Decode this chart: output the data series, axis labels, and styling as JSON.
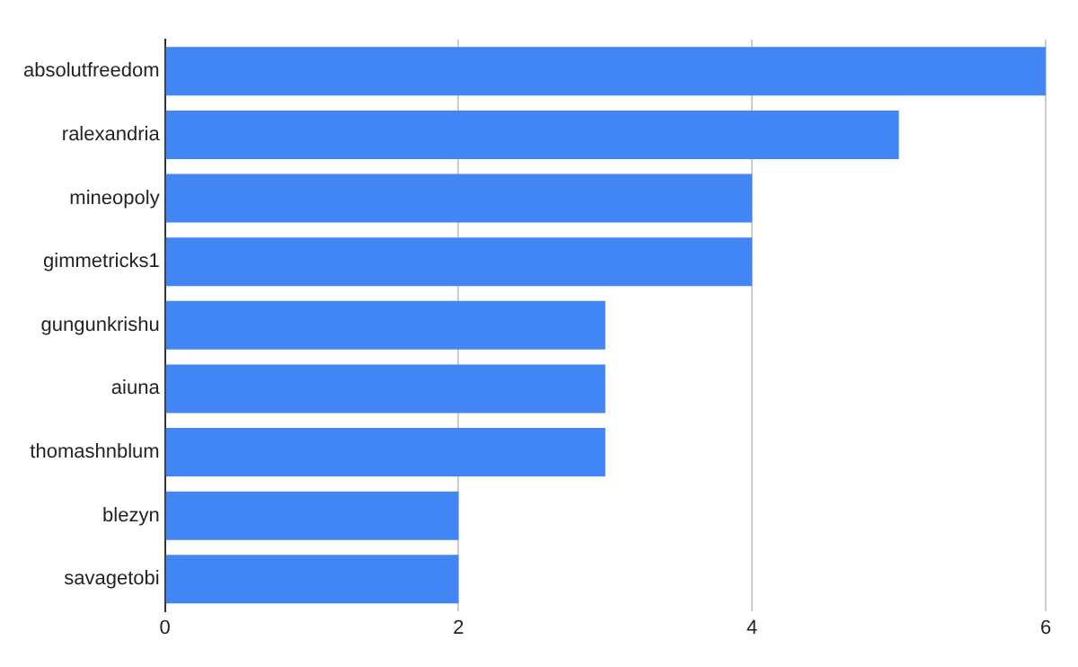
{
  "chart_data": {
    "type": "bar",
    "orientation": "horizontal",
    "categories": [
      "absolutfreedom",
      "ralexandria",
      "mineopoly",
      "gimmetricks1",
      "gungunkrishu",
      "aiuna",
      "thomashnblum",
      "blezyn",
      "savagetobi"
    ],
    "values": [
      6,
      5,
      4,
      4,
      3,
      3,
      3,
      2,
      2
    ],
    "color": "#4285f4",
    "xlim": [
      0,
      6
    ],
    "xticks": [
      0,
      2,
      4,
      6
    ],
    "grid": "x"
  }
}
